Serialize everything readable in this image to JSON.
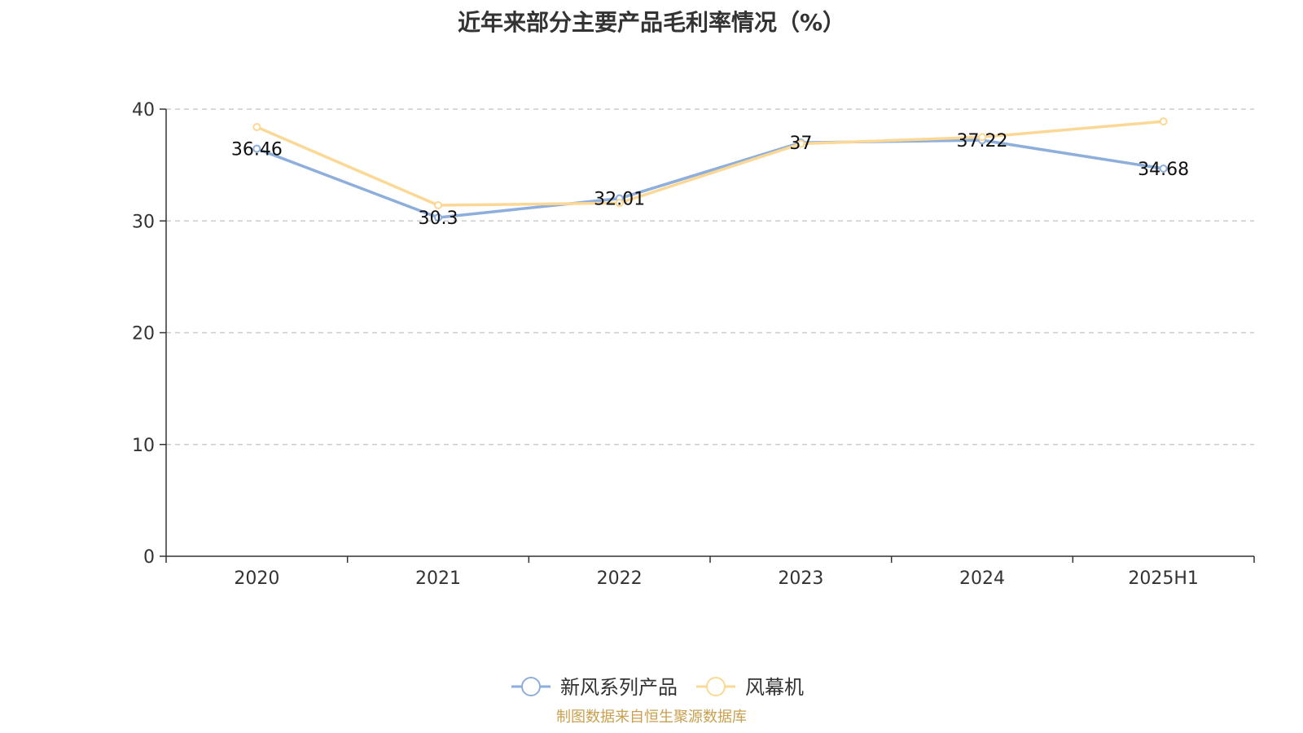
{
  "chart_data": {
    "type": "line",
    "title": "近年来部分主要产品毛利率情况（%）",
    "categories": [
      "2020",
      "2021",
      "2022",
      "2023",
      "2024",
      "2025H1"
    ],
    "series": [
      {
        "name": "新风系列产品",
        "values": [
          36.46,
          30.3,
          32.01,
          37,
          37.22,
          34.68
        ],
        "labels": [
          "36.46",
          "30.3",
          "32.01",
          "37",
          "37.22",
          "34.68"
        ],
        "color": "#8eaedb"
      },
      {
        "name": "风幕机",
        "values": [
          38.4,
          31.4,
          31.6,
          36.9,
          37.5,
          38.9
        ],
        "color": "#fbd896"
      }
    ],
    "y_ticks": [
      "0",
      "10",
      "20",
      "30",
      "40"
    ],
    "ylim": [
      0,
      40
    ],
    "grid": "horizontal-dashed",
    "legend_position": "bottom-center",
    "source": "制图数据来自恒生聚源数据库"
  }
}
